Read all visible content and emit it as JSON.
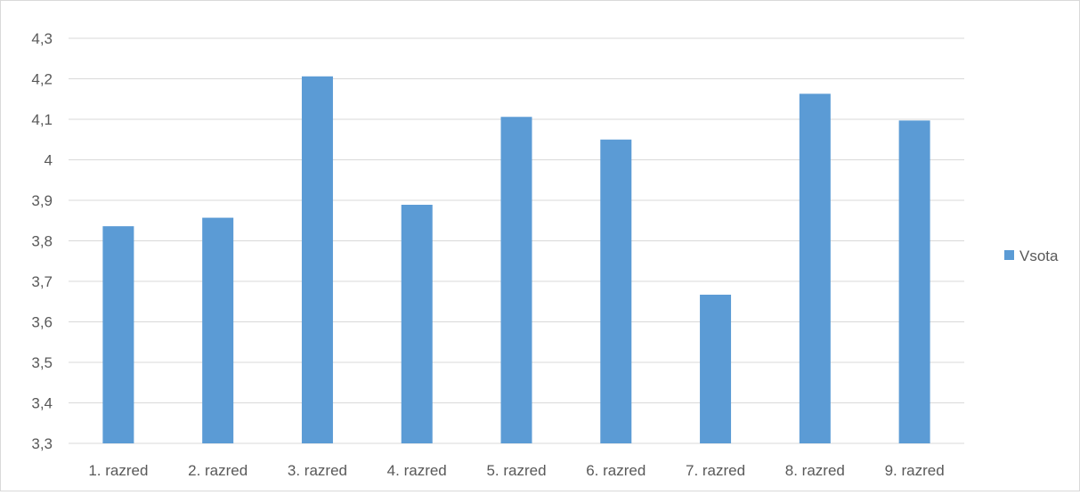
{
  "chart_data": {
    "type": "bar",
    "title": "",
    "xlabel": "",
    "ylabel": "",
    "categories": [
      "1. razred",
      "2. razred",
      "3. razred",
      "4. razred",
      "5. razred",
      "6. razred",
      "7. razred",
      "8. razred",
      "9. razred"
    ],
    "series": [
      {
        "name": "Vsota",
        "values": [
          3.836,
          3.857,
          4.206,
          3.889,
          4.106,
          4.05,
          3.667,
          4.163,
          4.097
        ],
        "color": "#5B9BD5"
      }
    ],
    "ylim": [
      3.3,
      4.3
    ],
    "yticks": [
      "3,3",
      "3,4",
      "3,5",
      "3,6",
      "3,7",
      "3,8",
      "3,9",
      "4",
      "4,1",
      "4,2",
      "4,3"
    ],
    "grid": true,
    "legend_position": "right"
  }
}
